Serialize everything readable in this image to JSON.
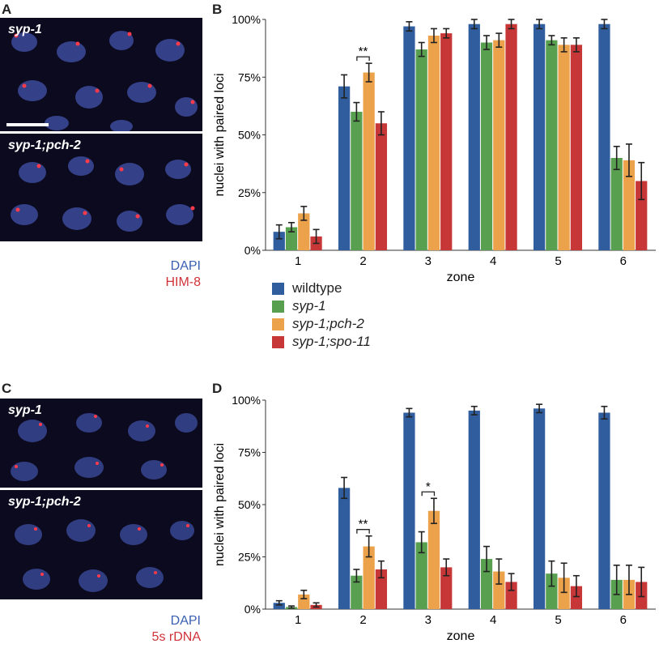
{
  "panels": {
    "A": {
      "letter": "A",
      "top_label": "syp-1",
      "bottom_label": "syp-1;pch-2",
      "stain_blue": "DAPI",
      "stain_red": "HIM-8"
    },
    "C": {
      "letter": "C",
      "top_label": "syp-1",
      "bottom_label": "syp-1;pch-2",
      "stain_blue": "DAPI",
      "stain_red": "5s rDNA"
    }
  },
  "legend": [
    {
      "label": "wildtype",
      "color": "#2f5d9e",
      "italic": false
    },
    {
      "label": "syp-1",
      "color": "#58a050",
      "italic": true
    },
    {
      "label": "syp-1;pch-2",
      "color": "#eca24a",
      "italic": true
    },
    {
      "label": "syp-1;spo-11",
      "color": "#c73737",
      "italic": true
    }
  ],
  "chart_data": [
    {
      "panel": "B",
      "type": "bar",
      "title": "",
      "xlabel": "zone",
      "ylabel": "nuclei with paired loci",
      "categories": [
        "1",
        "2",
        "3",
        "4",
        "5",
        "6"
      ],
      "yticks": [
        "0%",
        "25%",
        "50%",
        "75%",
        "100%"
      ],
      "ylim": [
        0,
        100
      ],
      "series": [
        {
          "name": "wildtype",
          "color": "#2f5d9e",
          "values": [
            8,
            71,
            97,
            98,
            98,
            98
          ],
          "errors": [
            3,
            5,
            2,
            2,
            2,
            2
          ]
        },
        {
          "name": "syp-1",
          "color": "#58a050",
          "values": [
            10,
            60,
            87,
            90,
            91,
            40
          ],
          "errors": [
            2,
            4,
            3,
            3,
            2,
            5
          ]
        },
        {
          "name": "syp-1;pch-2",
          "color": "#eca24a",
          "values": [
            16,
            77,
            93,
            91,
            89,
            39
          ],
          "errors": [
            3,
            4,
            3,
            3,
            3,
            7
          ]
        },
        {
          "name": "syp-1;spo-11",
          "color": "#c73737",
          "values": [
            6,
            55,
            94,
            98,
            89,
            30
          ],
          "errors": [
            3,
            5,
            2,
            2,
            3,
            8
          ]
        }
      ],
      "annotations": [
        {
          "text": "**",
          "category_index": 1,
          "between": [
            1,
            2
          ]
        }
      ]
    },
    {
      "panel": "D",
      "type": "bar",
      "title": "",
      "xlabel": "zone",
      "ylabel": "nuclei with paired loci",
      "categories": [
        "1",
        "2",
        "3",
        "4",
        "5",
        "6"
      ],
      "yticks": [
        "0%",
        "25%",
        "50%",
        "75%",
        "100%"
      ],
      "ylim": [
        0,
        100
      ],
      "series": [
        {
          "name": "wildtype",
          "color": "#2f5d9e",
          "values": [
            3,
            58,
            94,
            95,
            96,
            94
          ],
          "errors": [
            1,
            5,
            2,
            2,
            2,
            3
          ]
        },
        {
          "name": "syp-1",
          "color": "#58a050",
          "values": [
            1,
            16,
            32,
            24,
            17,
            14
          ],
          "errors": [
            0.5,
            3,
            5,
            6,
            6,
            7
          ]
        },
        {
          "name": "syp-1;pch-2",
          "color": "#eca24a",
          "values": [
            7,
            30,
            47,
            18,
            15,
            14
          ],
          "errors": [
            2,
            5,
            6,
            6,
            7,
            7
          ]
        },
        {
          "name": "syp-1;spo-11",
          "color": "#c73737",
          "values": [
            2,
            19,
            20,
            13,
            11,
            13
          ],
          "errors": [
            1,
            4,
            4,
            4,
            5,
            7
          ]
        }
      ],
      "annotations": [
        {
          "text": "**",
          "category_index": 1,
          "between": [
            1,
            2
          ]
        },
        {
          "text": "*",
          "category_index": 2,
          "between": [
            1,
            2
          ]
        }
      ]
    }
  ]
}
